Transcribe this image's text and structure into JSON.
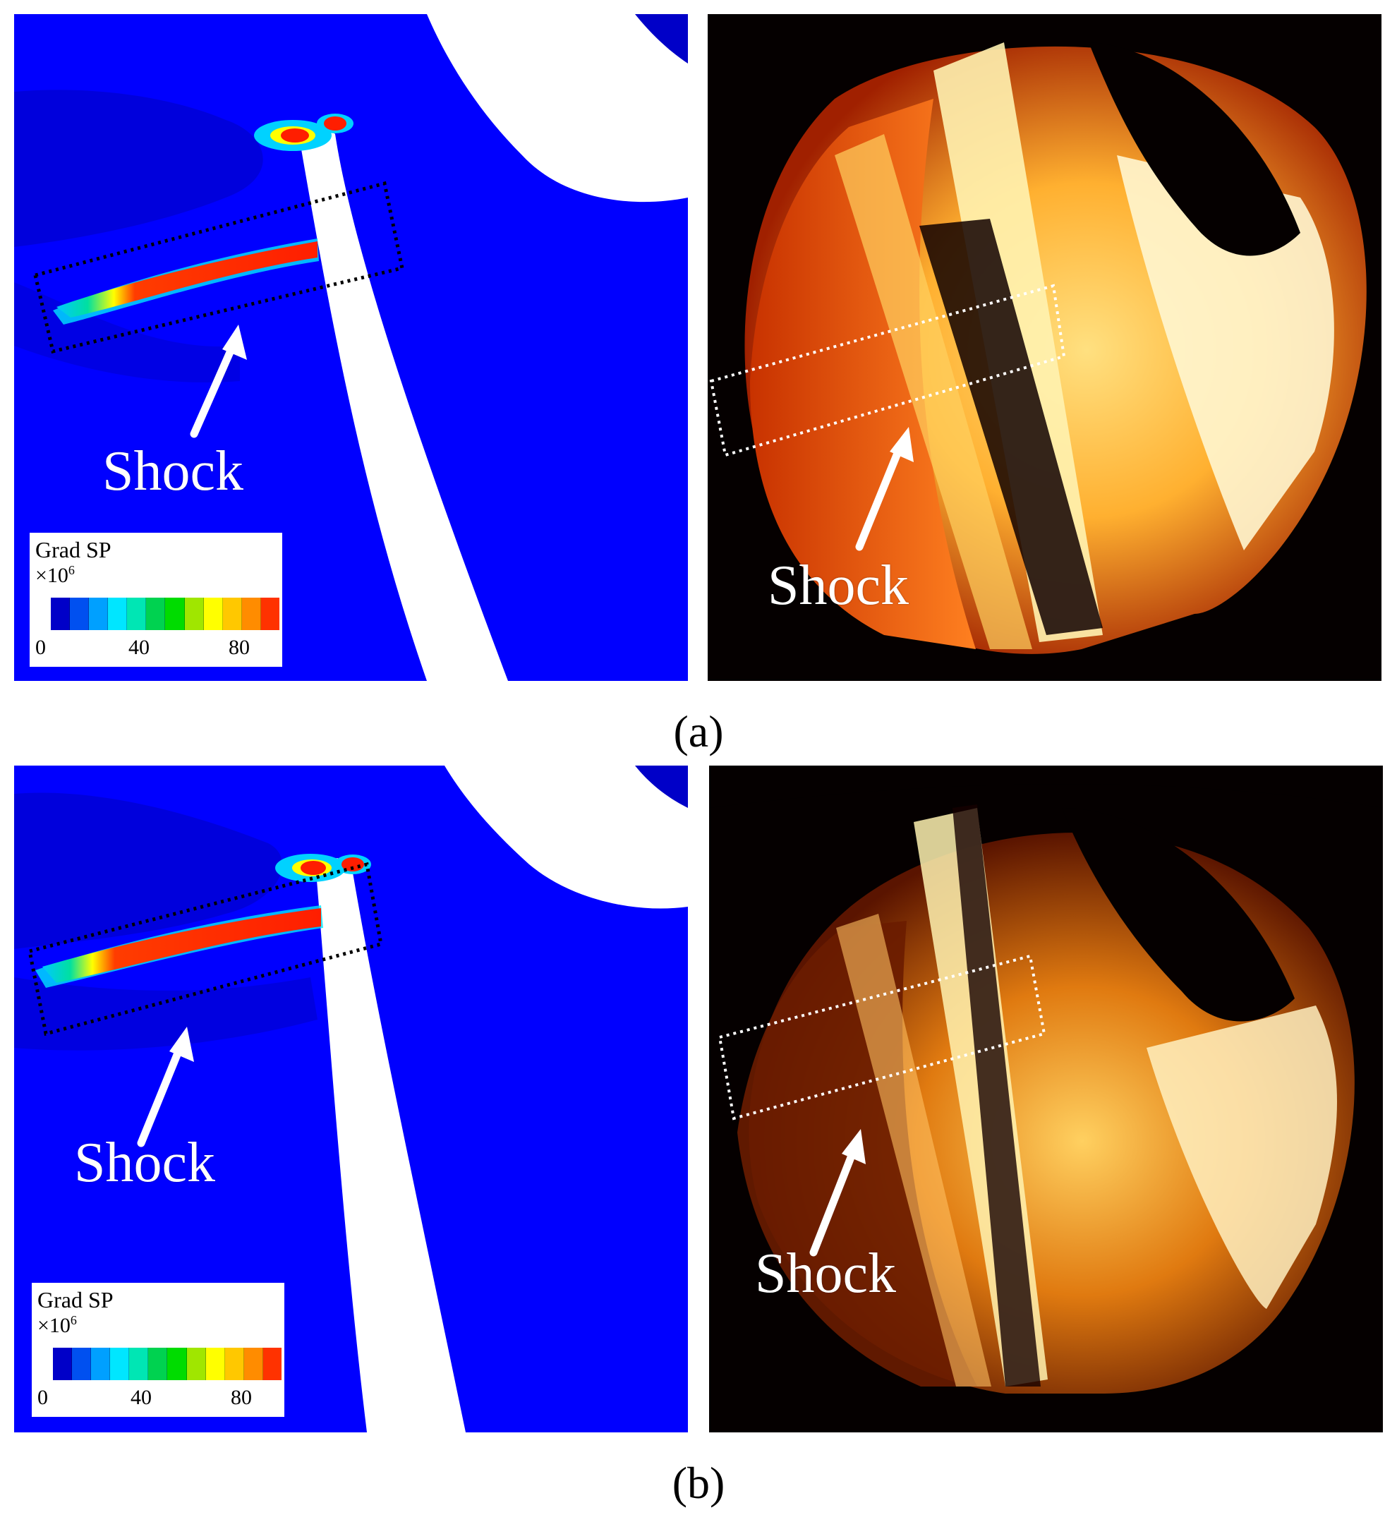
{
  "figure": {
    "panels": [
      {
        "caption": "(a)",
        "simulation": {
          "shock_label": "Shock"
        },
        "experiment": {
          "shock_label": "Shock"
        },
        "legend": {
          "title": "Grad SP",
          "scale_prefix": "×10",
          "scale_exponent": "6",
          "ticks": [
            "0",
            "40",
            "80"
          ]
        }
      },
      {
        "caption": "(b)",
        "simulation": {
          "shock_label": "Shock"
        },
        "experiment": {
          "shock_label": "Shock"
        },
        "legend": {
          "title": "Grad SP",
          "scale_prefix": "×10",
          "scale_exponent": "6",
          "ticks": [
            "0",
            "40",
            "80"
          ]
        }
      }
    ],
    "colorbar": [
      "#0000c8",
      "#0050f0",
      "#00a0ff",
      "#00e6ff",
      "#00e6b4",
      "#00d250",
      "#00dc00",
      "#a0e600",
      "#ffff00",
      "#ffc800",
      "#ff8c00",
      "#ff3200"
    ],
    "colors": {
      "field_blue": "#0000ff",
      "dark_blue": "#0000c8",
      "shock_red": "#ff1e00",
      "photo_black": "#050000"
    }
  }
}
